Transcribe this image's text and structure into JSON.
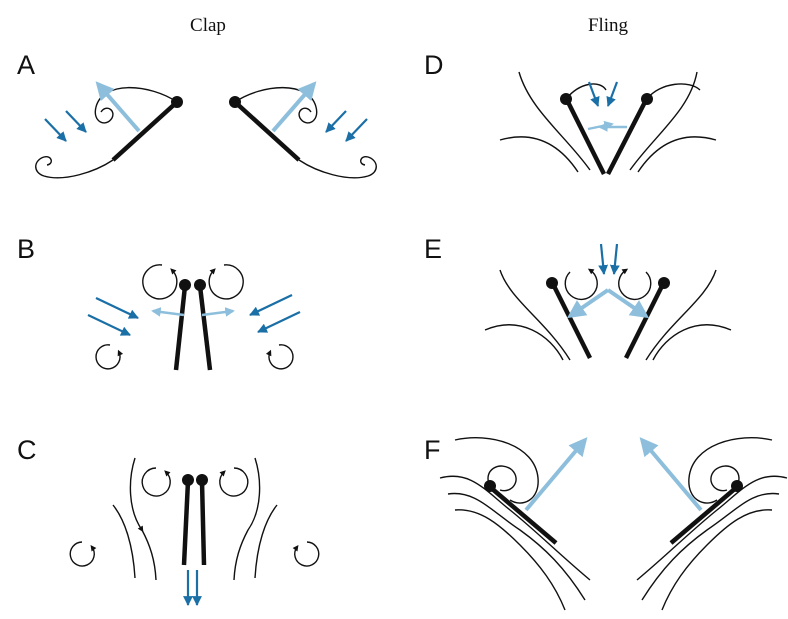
{
  "columns": {
    "clap": "Clap",
    "fling": "Fling"
  },
  "panels": [
    {
      "letter": "A",
      "column": "clap"
    },
    {
      "letter": "B",
      "column": "clap"
    },
    {
      "letter": "C",
      "column": "clap"
    },
    {
      "letter": "D",
      "column": "fling"
    },
    {
      "letter": "E",
      "column": "fling"
    },
    {
      "letter": "F",
      "column": "fling"
    }
  ],
  "colors": {
    "wing": "#111111",
    "flow_arrow": "#1a6fa6",
    "force_arrow": "#8dbfdc",
    "background": "#ffffff"
  }
}
